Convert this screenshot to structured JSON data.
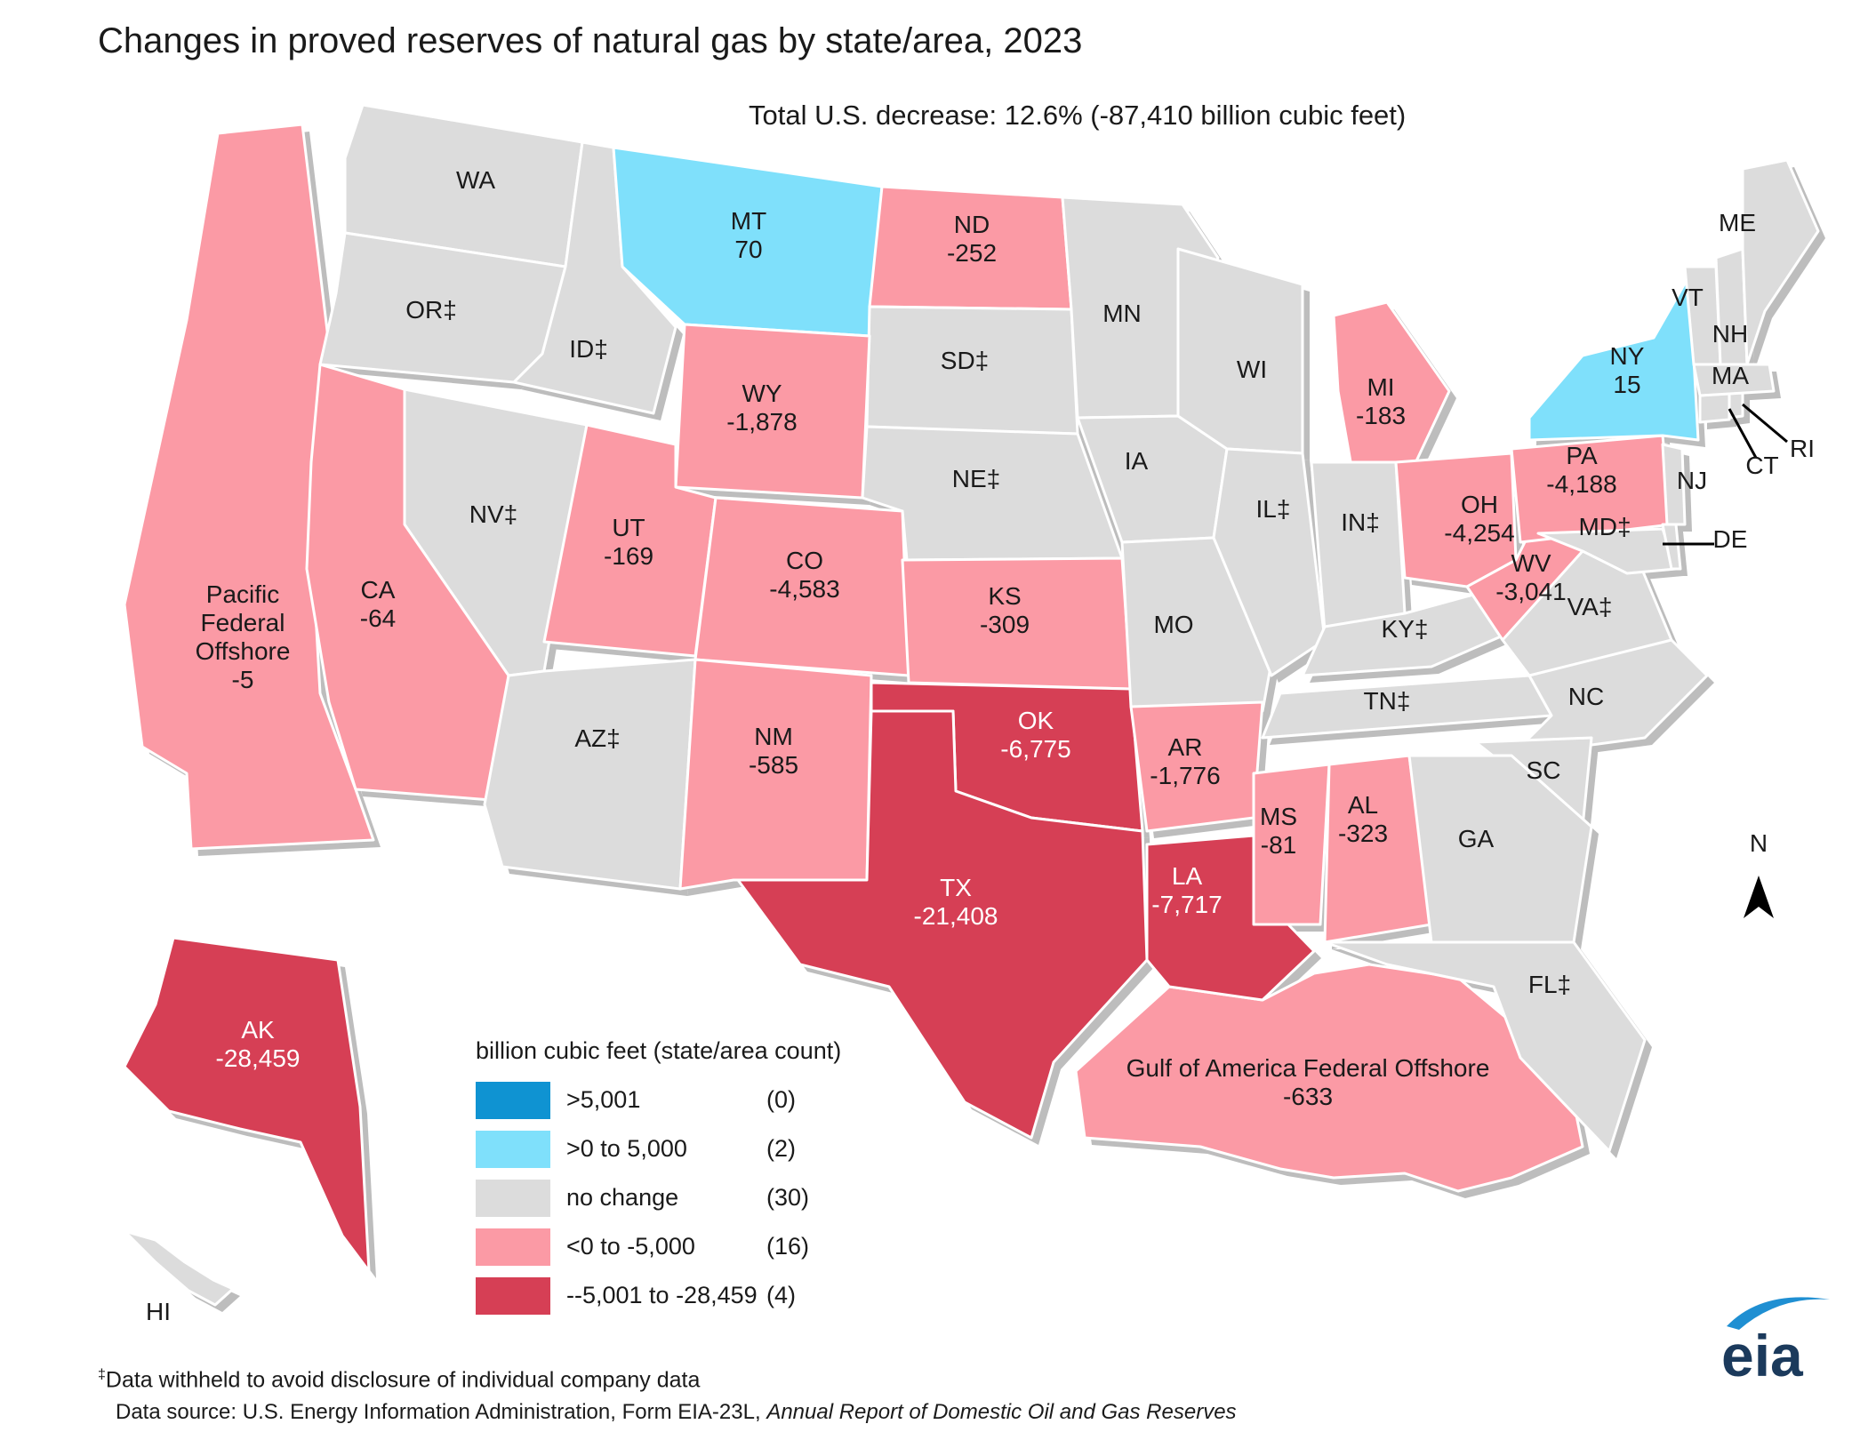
{
  "title": "Changes in proved reserves of natural gas by state/area, 2023",
  "total_note": "Total U.S. decrease: 12.6% (-87,410 billion cubic feet)",
  "colors": {
    "gt_5001": "#0f93d2",
    "pos_0_5000": "#7fe0fb",
    "no_change": "#dcdcdc",
    "neg_0_5000": "#fb9aa5",
    "neg_5001_28459": "#d63f55",
    "eia_blue": "#1f8fd2",
    "eia_dark": "#1b3a5c"
  },
  "legend": {
    "title": "billion cubic feet (state/area count)",
    "items": [
      {
        "label": ">5,001",
        "count": "(0)",
        "color": "#0f93d2"
      },
      {
        "label": ">0 to 5,000",
        "count": "(2)",
        "color": "#7fe0fb"
      },
      {
        "label": "no change",
        "count": "(30)",
        "color": "#dcdcdc"
      },
      {
        "label": "<0 to -5,000",
        "count": "(16)",
        "color": "#fb9aa5"
      },
      {
        "label": "--5,001 to -28,459",
        "count": "(4)",
        "color": "#d63f55"
      }
    ]
  },
  "states": {
    "WA": {
      "abbr": "WA",
      "value": "",
      "bin": "no_change"
    },
    "OR": {
      "abbr": "OR‡",
      "value": "",
      "bin": "no_change"
    },
    "ID": {
      "abbr": "ID‡",
      "value": "",
      "bin": "no_change"
    },
    "MT": {
      "abbr": "MT",
      "value": "70",
      "bin": "pos_0_5000"
    },
    "ND": {
      "abbr": "ND",
      "value": "-252",
      "bin": "neg_0_5000"
    },
    "SD": {
      "abbr": "SD‡",
      "value": "",
      "bin": "no_change"
    },
    "WY": {
      "abbr": "WY",
      "value": "-1,878",
      "bin": "neg_0_5000"
    },
    "NE": {
      "abbr": "NE‡",
      "value": "",
      "bin": "no_change"
    },
    "NV": {
      "abbr": "NV‡",
      "value": "",
      "bin": "no_change"
    },
    "UT": {
      "abbr": "UT",
      "value": "-169",
      "bin": "neg_0_5000"
    },
    "CO": {
      "abbr": "CO",
      "value": "-4,583",
      "bin": "neg_0_5000"
    },
    "KS": {
      "abbr": "KS",
      "value": "-309",
      "bin": "neg_0_5000"
    },
    "CA": {
      "abbr": "CA",
      "value": "-64",
      "bin": "neg_0_5000"
    },
    "AZ": {
      "abbr": "AZ‡",
      "value": "",
      "bin": "no_change"
    },
    "NM": {
      "abbr": "NM",
      "value": "-585",
      "bin": "neg_0_5000"
    },
    "OK": {
      "abbr": "OK",
      "value": "-6,775",
      "bin": "neg_5001_28459"
    },
    "TX": {
      "abbr": "TX",
      "value": "-21,408",
      "bin": "neg_5001_28459"
    },
    "MN": {
      "abbr": "MN",
      "value": "",
      "bin": "no_change"
    },
    "IA": {
      "abbr": "IA",
      "value": "",
      "bin": "no_change"
    },
    "MO": {
      "abbr": "MO",
      "value": "",
      "bin": "no_change"
    },
    "AR": {
      "abbr": "AR",
      "value": "-1,776",
      "bin": "neg_0_5000"
    },
    "LA": {
      "abbr": "LA",
      "value": "-7,717",
      "bin": "neg_5001_28459"
    },
    "WI": {
      "abbr": "WI",
      "value": "",
      "bin": "no_change"
    },
    "IL": {
      "abbr": "IL‡",
      "value": "",
      "bin": "no_change"
    },
    "MS": {
      "abbr": "MS",
      "value": "-81",
      "bin": "neg_0_5000"
    },
    "MI": {
      "abbr": "MI",
      "value": "-183",
      "bin": "neg_0_5000"
    },
    "IN": {
      "abbr": "IN‡",
      "value": "",
      "bin": "no_change"
    },
    "KY": {
      "abbr": "KY‡",
      "value": "",
      "bin": "no_change"
    },
    "TN": {
      "abbr": "TN‡",
      "value": "",
      "bin": "no_change"
    },
    "AL": {
      "abbr": "AL",
      "value": "-323",
      "bin": "neg_0_5000"
    },
    "OH": {
      "abbr": "OH",
      "value": "-4,254",
      "bin": "neg_0_5000"
    },
    "WV": {
      "abbr": "WV",
      "value": "-3,041",
      "bin": "neg_0_5000"
    },
    "VA": {
      "abbr": "VA‡",
      "value": "",
      "bin": "no_change"
    },
    "NC": {
      "abbr": "NC",
      "value": "",
      "bin": "no_change"
    },
    "SC": {
      "abbr": "SC",
      "value": "",
      "bin": "no_change"
    },
    "GA": {
      "abbr": "GA",
      "value": "",
      "bin": "no_change"
    },
    "FL": {
      "abbr": "FL‡",
      "value": "",
      "bin": "no_change"
    },
    "PA": {
      "abbr": "PA",
      "value": "-4,188",
      "bin": "neg_0_5000"
    },
    "NY": {
      "abbr": "NY",
      "value": "15",
      "bin": "pos_0_5000"
    },
    "MD": {
      "abbr": "MD‡",
      "value": "",
      "bin": "no_change"
    },
    "DE": {
      "abbr": "DE",
      "value": "",
      "bin": "no_change"
    },
    "NJ": {
      "abbr": "NJ",
      "value": "",
      "bin": "no_change"
    },
    "CT": {
      "abbr": "CT",
      "value": "",
      "bin": "no_change"
    },
    "RI": {
      "abbr": "RI",
      "value": "",
      "bin": "no_change"
    },
    "MA": {
      "abbr": "MA",
      "value": "",
      "bin": "no_change"
    },
    "VT": {
      "abbr": "VT",
      "value": "",
      "bin": "no_change"
    },
    "NH": {
      "abbr": "NH",
      "value": "",
      "bin": "no_change"
    },
    "ME": {
      "abbr": "ME",
      "value": "",
      "bin": "no_change"
    },
    "AK": {
      "abbr": "AK",
      "value": "-28,459",
      "bin": "neg_5001_28459"
    },
    "HI": {
      "abbr": "HI",
      "value": "",
      "bin": "no_change"
    }
  },
  "offshore": {
    "pacific": {
      "name_lines": [
        "Pacific",
        "Federal",
        "Offshore"
      ],
      "value": "-5",
      "bin": "neg_0_5000"
    },
    "gulf": {
      "name": "Gulf of America Federal Offshore",
      "value": "-633",
      "bin": "neg_0_5000"
    }
  },
  "north_arrow": "N",
  "footnote": {
    "mark": "‡",
    "text": "Data withheld to avoid disclosure of individual company data"
  },
  "source": {
    "prefix": "Data source: U.S. Energy Information Administration, Form EIA-23L, ",
    "title": "Annual Report of Domestic Oil and Gas Reserves"
  },
  "logo_text": "eia"
}
